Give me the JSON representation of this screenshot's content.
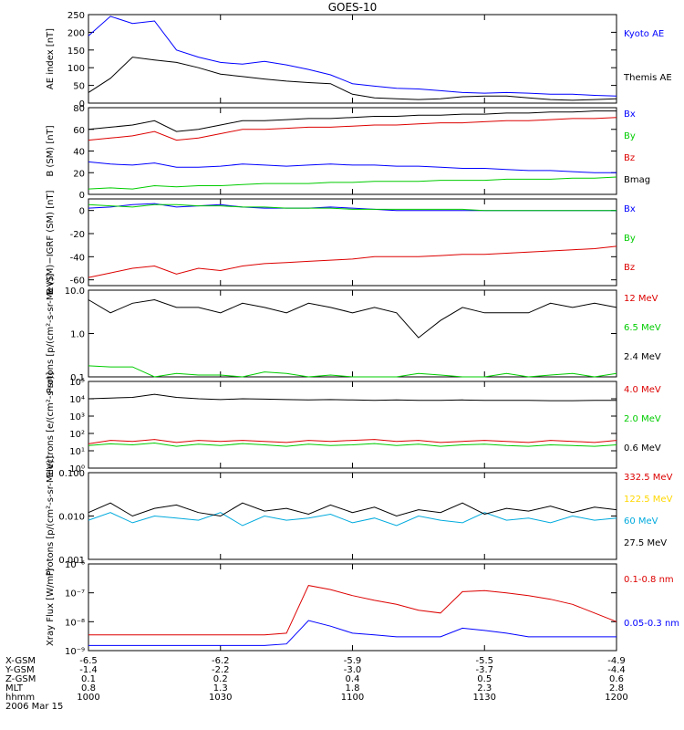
{
  "chart_data": [
    {
      "type": "line",
      "title": "GOES-10",
      "ylabel": "AE index [nT]",
      "ylim": [
        0,
        250
      ],
      "yticks": [
        0,
        50,
        100,
        150,
        200,
        250
      ],
      "x_time": [
        "1000",
        "1005",
        "1010",
        "1015",
        "1020",
        "1025",
        "1030",
        "1035",
        "1040",
        "1045",
        "1050",
        "1055",
        "1100",
        "1105",
        "1110",
        "1115",
        "1120",
        "1125",
        "1130",
        "1135",
        "1140",
        "1145",
        "1150",
        "1155",
        "1200"
      ],
      "series": [
        {
          "name": "Kyoto AE",
          "color": "#0000ff",
          "values": [
            190,
            245,
            225,
            232,
            150,
            130,
            115,
            110,
            118,
            108,
            95,
            80,
            55,
            48,
            42,
            40,
            35,
            30,
            28,
            30,
            28,
            25,
            25,
            22,
            20
          ]
        },
        {
          "name": "Themis AE",
          "color": "#000000",
          "values": [
            30,
            70,
            130,
            122,
            115,
            100,
            82,
            75,
            68,
            62,
            58,
            55,
            25,
            15,
            12,
            10,
            12,
            18,
            20,
            20,
            15,
            10,
            8,
            10,
            12
          ]
        }
      ]
    },
    {
      "type": "line",
      "ylabel": "B (SM) [nT]",
      "ylim": [
        0,
        80
      ],
      "yticks": [
        0,
        20,
        40,
        60,
        80
      ],
      "series": [
        {
          "name": "Bx",
          "color": "#0000ff",
          "values": [
            30,
            28,
            27,
            29,
            25,
            25,
            26,
            28,
            27,
            26,
            27,
            28,
            27,
            27,
            26,
            26,
            25,
            24,
            24,
            23,
            22,
            22,
            21,
            20,
            20
          ]
        },
        {
          "name": "By",
          "color": "#00cc00",
          "values": [
            5,
            6,
            5,
            8,
            7,
            8,
            8,
            9,
            10,
            10,
            10,
            11,
            11,
            12,
            12,
            12,
            13,
            13,
            13,
            14,
            14,
            14,
            15,
            15,
            16
          ]
        },
        {
          "name": "Bz",
          "color": "#dd0000",
          "values": [
            50,
            52,
            54,
            58,
            50,
            52,
            56,
            60,
            60,
            61,
            62,
            62,
            63,
            64,
            64,
            65,
            66,
            66,
            67,
            68,
            68,
            69,
            70,
            70,
            71
          ]
        },
        {
          "name": "Bmag",
          "color": "#000000",
          "values": [
            60,
            62,
            64,
            68,
            58,
            60,
            64,
            68,
            68,
            69,
            70,
            70,
            71,
            72,
            72,
            73,
            73,
            74,
            74,
            75,
            75,
            76,
            76,
            77,
            77
          ]
        }
      ]
    },
    {
      "type": "line",
      "ylabel": "B (SM)−IGRF (SM) [nT]",
      "ylim": [
        -65,
        10
      ],
      "yticks": [
        -60,
        -40,
        -20,
        0
      ],
      "series": [
        {
          "name": "Bx",
          "color": "#0000ff",
          "values": [
            2,
            3,
            5,
            6,
            3,
            4,
            5,
            3,
            2,
            2,
            2,
            3,
            2,
            1,
            0,
            0,
            0,
            0,
            0,
            0,
            0,
            0,
            0,
            0,
            0
          ]
        },
        {
          "name": "By",
          "color": "#00cc00",
          "values": [
            5,
            4,
            3,
            5,
            5,
            4,
            4,
            3,
            3,
            2,
            2,
            2,
            1,
            1,
            1,
            1,
            1,
            1,
            0,
            0,
            0,
            0,
            0,
            0,
            0
          ]
        },
        {
          "name": "Bz",
          "color": "#dd0000",
          "values": [
            -58,
            -54,
            -50,
            -48,
            -55,
            -50,
            -52,
            -48,
            -46,
            -45,
            -44,
            -43,
            -42,
            -40,
            -40,
            -40,
            -39,
            -38,
            -38,
            -37,
            -36,
            -35,
            -34,
            -33,
            -31
          ]
        }
      ]
    },
    {
      "type": "line",
      "ylabel": "Protons [p/(cm²-s-sr-MeV)]",
      "yscale": "log",
      "ylim": [
        0.1,
        10
      ],
      "yticks": [
        0.1,
        1.0,
        10.0
      ],
      "ytick_labels": [
        "0.1",
        "1.0",
        "10.0"
      ],
      "series": [
        {
          "name": "12 MeV",
          "color": "#dd0000",
          "values": []
        },
        {
          "name": "6.5 MeV",
          "color": "#00cc00",
          "values": [
            0.18,
            0.17,
            0.17,
            0.1,
            0.12,
            0.11,
            0.11,
            0.1,
            0.13,
            0.12,
            0.1,
            0.11,
            0.1,
            0.1,
            0.1,
            0.12,
            0.11,
            0.1,
            0.1,
            0.12,
            0.1,
            0.11,
            0.12,
            0.1,
            0.12
          ]
        },
        {
          "name": "2.4 MeV",
          "color": "#000000",
          "values": [
            6,
            3,
            5,
            6,
            4,
            4,
            3,
            5,
            4,
            3,
            5,
            4,
            3,
            4,
            3,
            0.8,
            2,
            4,
            3,
            3,
            3,
            5,
            4,
            5,
            4
          ]
        }
      ]
    },
    {
      "type": "line",
      "ylabel": "Electrons [e/(cm²-s-sr)]",
      "yscale": "log",
      "ylim": [
        1,
        100000
      ],
      "yticks": [
        1,
        10,
        100,
        1000,
        10000,
        100000
      ],
      "ytick_labels": [
        "10⁰",
        "10¹",
        "10²",
        "10³",
        "10⁴",
        "10⁵"
      ],
      "series": [
        {
          "name": "4.0 MeV",
          "color": "#dd0000",
          "values": []
        },
        {
          "name": "2.0 MeV",
          "color": "#00cc00",
          "values": [
            20,
            25,
            22,
            28,
            18,
            24,
            20,
            26,
            22,
            18,
            24,
            20,
            22,
            26,
            20,
            24,
            18,
            22,
            24,
            20,
            18,
            22,
            20,
            18,
            22
          ]
        },
        {
          "name": "0.6 MeV",
          "color": "#000000",
          "values": [
            10000,
            11000,
            12000,
            18000,
            12000,
            10000,
            9000,
            10000,
            9500,
            9000,
            8500,
            9000,
            8500,
            8000,
            8500,
            8000,
            8000,
            8500,
            8000,
            8000,
            8000,
            7800,
            7800,
            8000,
            8000
          ]
        }
      ],
      "extra_series": [
        {
          "color": "#dd0000",
          "values": [
            25,
            40,
            35,
            45,
            30,
            40,
            35,
            40,
            35,
            30,
            40,
            35,
            40,
            45,
            35,
            40,
            30,
            35,
            40,
            35,
            30,
            40,
            35,
            30,
            40
          ]
        }
      ]
    },
    {
      "type": "line",
      "ylabel": "Protons [p/(cm²-s-sr-MeV)]",
      "yscale": "log",
      "ylim": [
        0.001,
        0.1
      ],
      "yticks": [
        0.001,
        0.01,
        0.1
      ],
      "ytick_labels": [
        "0.001",
        "0.010",
        "0.100"
      ],
      "series": [
        {
          "name": "332.5 MeV",
          "color": "#dd0000",
          "values": []
        },
        {
          "name": "122.5 MeV",
          "color": "#ffd700",
          "values": []
        },
        {
          "name": "60 MeV",
          "color": "#00aadd",
          "values": [
            0.008,
            0.012,
            0.007,
            0.01,
            0.009,
            0.008,
            0.012,
            0.006,
            0.01,
            0.008,
            0.009,
            0.011,
            0.007,
            0.009,
            0.006,
            0.01,
            0.008,
            0.007,
            0.012,
            0.008,
            0.009,
            0.007,
            0.01,
            0.008,
            0.009
          ]
        },
        {
          "name": "27.5 MeV",
          "color": "#000000",
          "values": [
            0.012,
            0.02,
            0.01,
            0.015,
            0.018,
            0.012,
            0.01,
            0.02,
            0.013,
            0.015,
            0.011,
            0.018,
            0.012,
            0.016,
            0.01,
            0.014,
            0.012,
            0.02,
            0.011,
            0.015,
            0.013,
            0.017,
            0.012,
            0.016,
            0.014
          ]
        }
      ]
    },
    {
      "type": "line",
      "ylabel": "Xray Flux [W/m²]",
      "yscale": "log",
      "ylim": [
        1e-09,
        1e-06
      ],
      "yticks": [
        1e-09,
        1e-08,
        1e-07,
        1e-06
      ],
      "ytick_labels": [
        "10⁻⁹",
        "10⁻⁸",
        "10⁻⁷",
        "10⁻⁶"
      ],
      "series": [
        {
          "name": "0.1-0.8 nm",
          "color": "#dd0000",
          "values": [
            3.5e-09,
            3.5e-09,
            3.5e-09,
            3.5e-09,
            3.5e-09,
            3.5e-09,
            3.5e-09,
            3.5e-09,
            3.5e-09,
            4e-09,
            1.8e-07,
            1.3e-07,
            8e-08,
            5.5e-08,
            4e-08,
            2.5e-08,
            2e-08,
            1.1e-07,
            1.2e-07,
            1e-07,
            8e-08,
            6e-08,
            4e-08,
            2e-08,
            1e-08
          ]
        },
        {
          "name": "0.05-0.3 nm",
          "color": "#0000ff",
          "values": [
            1.5e-09,
            1.5e-09,
            1.5e-09,
            1.5e-09,
            1.5e-09,
            1.5e-09,
            1.5e-09,
            1.5e-09,
            1.5e-09,
            1.7e-09,
            1.1e-08,
            7e-09,
            4e-09,
            3.5e-09,
            3e-09,
            3e-09,
            3e-09,
            6e-09,
            5e-09,
            4e-09,
            3e-09,
            3e-09,
            3e-09,
            3e-09,
            3e-09
          ]
        }
      ]
    }
  ],
  "xaxis": {
    "row_labels": [
      "X-GSM",
      "Y-GSM",
      "Z-GSM",
      "MLT",
      "hhmm"
    ],
    "date": "2006 Mar 15",
    "columns": [
      {
        "values": [
          "-6.5",
          "-1.4",
          "0.1",
          "0.8",
          "1000"
        ]
      },
      {
        "values": [
          "-6.2",
          "-2.2",
          "0.2",
          "1.3",
          "1030"
        ]
      },
      {
        "values": [
          "-5.9",
          "-3.0",
          "0.4",
          "1.8",
          "1100"
        ]
      },
      {
        "values": [
          "-5.5",
          "-3.7",
          "0.5",
          "2.3",
          "1130"
        ]
      },
      {
        "values": [
          "-4.9",
          "-4.4",
          "0.6",
          "2.8",
          "1200"
        ]
      }
    ]
  }
}
